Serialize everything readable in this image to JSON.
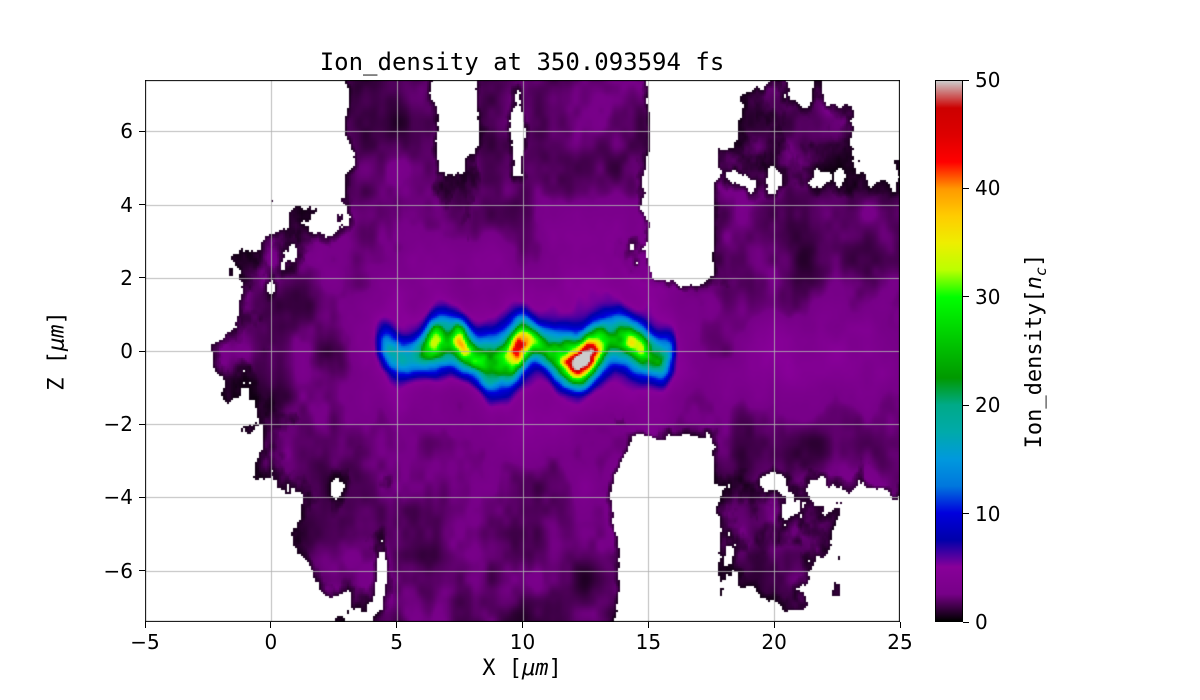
{
  "figure": {
    "title": "Ion_density at 350.093594 fs",
    "background": "#ffffff"
  },
  "axes": {
    "xlabel": {
      "prefix": "X [",
      "unit": "μm",
      "suffix": "]"
    },
    "ylabel": {
      "prefix": "Z [",
      "unit": "μm",
      "suffix": "]"
    },
    "x_ticks": {
      "values": [
        -5,
        0,
        5,
        10,
        15,
        20,
        25
      ],
      "labels": [
        "−5",
        "0",
        "5",
        "10",
        "15",
        "20",
        "25"
      ]
    },
    "z_ticks": {
      "values": [
        -6,
        -4,
        -2,
        0,
        2,
        4,
        6
      ],
      "labels": [
        "−6",
        "−4",
        "−2",
        "0",
        "2",
        "4",
        "6"
      ]
    },
    "grid_color": "#b0b0b0"
  },
  "colorbar": {
    "ticks": {
      "values": [
        0,
        10,
        20,
        30,
        40,
        50
      ],
      "labels": [
        "0",
        "10",
        "20",
        "30",
        "40",
        "50"
      ]
    },
    "label": {
      "prefix": "Ion_density[",
      "var": "n",
      "sub": "c",
      "suffix": "]"
    }
  },
  "chart_data": {
    "type": "heatmap",
    "title": "Ion_density at 350.093594 fs",
    "xlabel": "X [μm]",
    "ylabel": "Z [μm]",
    "colorbar_label": "Ion_density[n_c]",
    "x_range": [
      -5,
      25
    ],
    "z_range": [
      -7.4,
      7.4
    ],
    "color_range": [
      0,
      50
    ],
    "colormap": "nipy_spectral",
    "colormap_stops": [
      [
        0.0,
        0.0,
        0.0,
        0.0
      ],
      [
        0.05,
        0.4667,
        0.0,
        0.5333
      ],
      [
        0.1,
        0.5333,
        0.0,
        0.6
      ],
      [
        0.15,
        0.0,
        0.0,
        0.6667
      ],
      [
        0.2,
        0.0,
        0.0,
        0.8667
      ],
      [
        0.25,
        0.0,
        0.4667,
        0.8667
      ],
      [
        0.3,
        0.0,
        0.6,
        0.8667
      ],
      [
        0.35,
        0.0,
        0.6667,
        0.6667
      ],
      [
        0.4,
        0.0,
        0.6667,
        0.5333
      ],
      [
        0.45,
        0.0,
        0.6,
        0.0
      ],
      [
        0.5,
        0.0,
        0.7333,
        0.0
      ],
      [
        0.55,
        0.0,
        0.8667,
        0.0
      ],
      [
        0.6,
        0.0,
        1.0,
        0.0
      ],
      [
        0.65,
        0.7333,
        1.0,
        0.0
      ],
      [
        0.7,
        0.9333,
        0.9333,
        0.0
      ],
      [
        0.75,
        1.0,
        0.8,
        0.0
      ],
      [
        0.8,
        1.0,
        0.6,
        0.0
      ],
      [
        0.85,
        1.0,
        0.0,
        0.0
      ],
      [
        0.9,
        0.8667,
        0.0,
        0.0
      ],
      [
        0.95,
        0.8,
        0.0,
        0.0
      ],
      [
        1.0,
        0.8,
        0.8,
        0.8
      ]
    ],
    "grid": true,
    "x_ticks": [
      -5,
      0,
      5,
      10,
      15,
      20,
      25
    ],
    "z_ticks": [
      -6,
      -4,
      -2,
      0,
      2,
      4,
      6
    ],
    "colorbar_ticks": [
      0,
      10,
      20,
      30,
      40,
      50
    ],
    "hotspots": [
      {
        "x": 12.4,
        "z": 0.0,
        "peak_density": 50,
        "bump": 30,
        "sx": 0.5
      },
      {
        "x": 9.9,
        "z": -0.25,
        "peak_density": 45,
        "bump": 20,
        "sx": 0.3
      },
      {
        "x": 7.6,
        "z": -0.2,
        "peak_density": 35,
        "bump": 11,
        "sx": 0.3
      },
      {
        "x": 6.4,
        "z": 0.1,
        "peak_density": 33,
        "bump": 11,
        "sx": 0.33
      },
      {
        "x": 14.4,
        "z": 0.0,
        "peak_density": 30,
        "bump": 9,
        "sx": 0.35
      }
    ],
    "features": [
      "central high-density filament along z≈0 spanning x≈4–16 μm, density 10–50 n_c (blue/cyan fringe, green-yellow core)",
      "saturated hotspot with gray core ≥50 n_c and red ring at x≈12.4 μm, z≈0",
      "secondary red hotspot ≈45 n_c at x≈9.9 μm, z≈−0.25 μm",
      "diffuse magenta-purple plasma cloud 3–8 n_c for x≈3–16 μm, |z|≲3 μm",
      "faint purple streak near z≈−0.5 μm extending right to x≈25 μm",
      "speckled near-black halo 1–3 n_c over most of the domain",
      "white = no data / vacuum: outer margins, vertical gap near x≈16–17.5 μm, lower-right and upper-right corners"
    ]
  }
}
